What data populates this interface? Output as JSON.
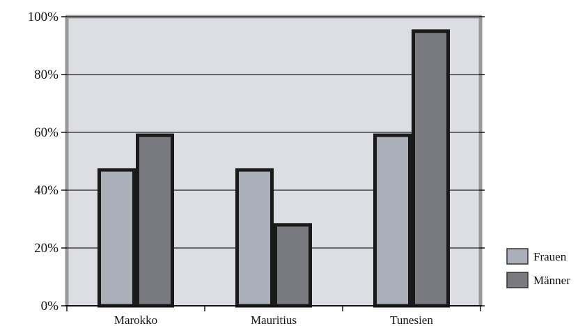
{
  "chart_data": {
    "type": "bar",
    "categories": [
      "Marokko",
      "Mauritius",
      "Tunesien"
    ],
    "series": [
      {
        "name": "Frauen",
        "values": [
          47,
          47,
          59
        ]
      },
      {
        "name": "Männer",
        "values": [
          59,
          28,
          95
        ]
      }
    ],
    "ylim": [
      0,
      100
    ],
    "yticks": [
      0,
      20,
      40,
      60,
      80,
      100
    ],
    "ytick_labels": [
      "0%",
      "20%",
      "40%",
      "60%",
      "80%",
      "100%"
    ],
    "title": "",
    "xlabel": "",
    "ylabel": "",
    "grid": true,
    "legend_position": "bottom-right"
  },
  "colors": {
    "plot_background": "#dcdee3",
    "frauen_fill": "#aaafb9",
    "maenner_fill": "#787a80",
    "bar_outline": "#1a1a1a",
    "plot_border": "#999999",
    "gridline": "#222222"
  }
}
